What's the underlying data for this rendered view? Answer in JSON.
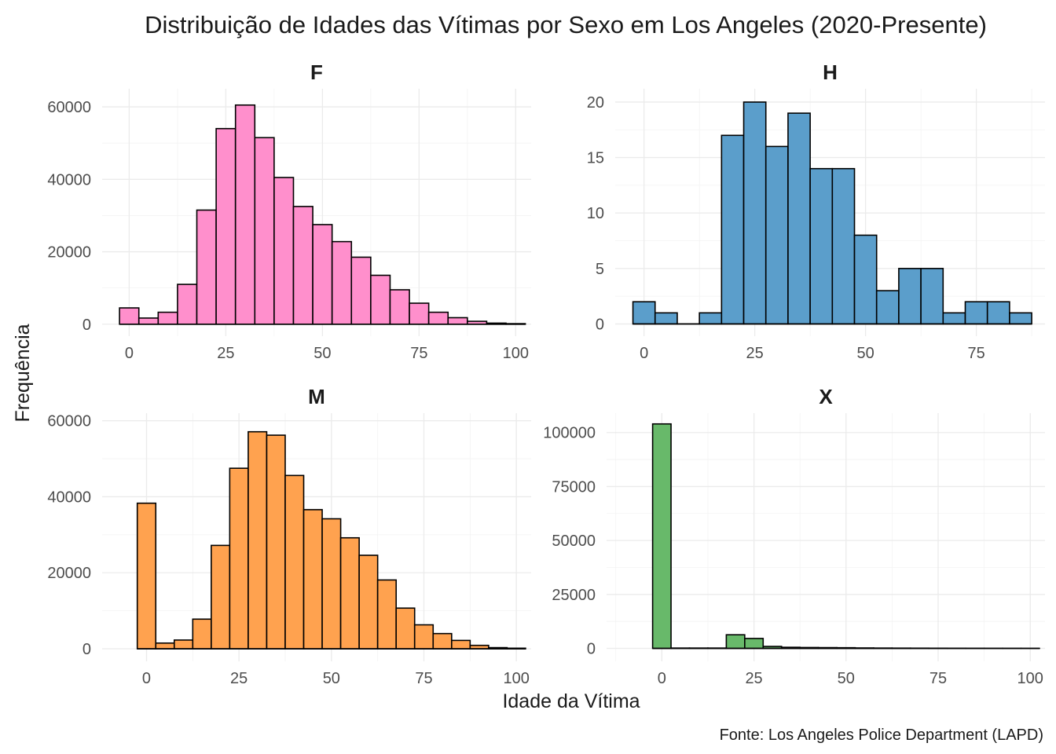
{
  "chart_data": {
    "type": "bar",
    "chart_kind": "faceted-histogram",
    "title": "Distribuição de Idades das Vítimas por Sexo em Los Angeles (2020-Presente)",
    "xlabel": "Idade da Vítima",
    "ylabel": "Frequência",
    "caption": "Fonte: Los Angeles Police Department (LAPD)",
    "grid": true,
    "bin_width": 5,
    "facets": [
      {
        "name": "F",
        "color": "#ff8fcc",
        "bin_start": -2.5,
        "values": [
          4500,
          1700,
          3300,
          11000,
          31500,
          54000,
          60500,
          51500,
          40500,
          32500,
          27500,
          22800,
          18500,
          13500,
          9500,
          5800,
          3300,
          1800,
          800,
          300,
          150
        ],
        "xlim": [
          -7,
          104
        ],
        "ylim": [
          -3300,
          65000
        ],
        "xticks": [
          0,
          25,
          50,
          75,
          100
        ],
        "xtick_labels": [
          "0",
          "25",
          "50",
          "75",
          "100"
        ],
        "yticks": [
          0,
          20000,
          40000,
          60000
        ],
        "ytick_labels": [
          "0",
          "20000",
          "40000",
          "60000"
        ]
      },
      {
        "name": "H",
        "color": "#5b9ecb",
        "bin_start": -2.5,
        "values": [
          2,
          1,
          0,
          1,
          17,
          20,
          16,
          19,
          14,
          14,
          8,
          3,
          5,
          5,
          1,
          2,
          2,
          1
        ],
        "xlim": [
          -6.5,
          90.5
        ],
        "ylim": [
          -1.1,
          21.2
        ],
        "xticks": [
          0,
          25,
          50,
          75
        ],
        "xtick_labels": [
          "0",
          "25",
          "50",
          "75"
        ],
        "yticks": [
          0,
          5,
          10,
          15,
          20
        ],
        "ytick_labels": [
          "0",
          "5",
          "10",
          "15",
          "20"
        ]
      },
      {
        "name": "M",
        "color": "#ffa24f",
        "bin_start": -2.5,
        "values": [
          38300,
          1500,
          2300,
          7800,
          27200,
          47500,
          57100,
          56200,
          45600,
          36600,
          34200,
          29200,
          24600,
          18100,
          10700,
          6300,
          4000,
          2200,
          900,
          300,
          150
        ],
        "xlim": [
          -12,
          104
        ],
        "ylim": [
          -3300,
          62000
        ],
        "xticks": [
          0,
          25,
          50,
          75,
          100
        ],
        "xtick_labels": [
          "0",
          "25",
          "50",
          "75",
          "100"
        ],
        "yticks": [
          0,
          20000,
          40000,
          60000
        ],
        "ytick_labels": [
          "0",
          "20000",
          "40000",
          "60000"
        ]
      },
      {
        "name": "X",
        "color": "#68b96a",
        "bin_start": -2.5,
        "values": [
          104000,
          150,
          150,
          150,
          6300,
          4600,
          900,
          500,
          400,
          350,
          300,
          200,
          150,
          120,
          100,
          80,
          60,
          40,
          30,
          20,
          10
        ],
        "xlim": [
          -15,
          104
        ],
        "ylim": [
          -6000,
          109000
        ],
        "xticks": [
          0,
          25,
          50,
          75,
          100
        ],
        "xtick_labels": [
          "0",
          "25",
          "50",
          "75",
          "100"
        ],
        "yticks": [
          0,
          25000,
          50000,
          75000,
          100000
        ],
        "ytick_labels": [
          "0",
          "25000",
          "50000",
          "75000",
          "100000"
        ]
      }
    ]
  }
}
